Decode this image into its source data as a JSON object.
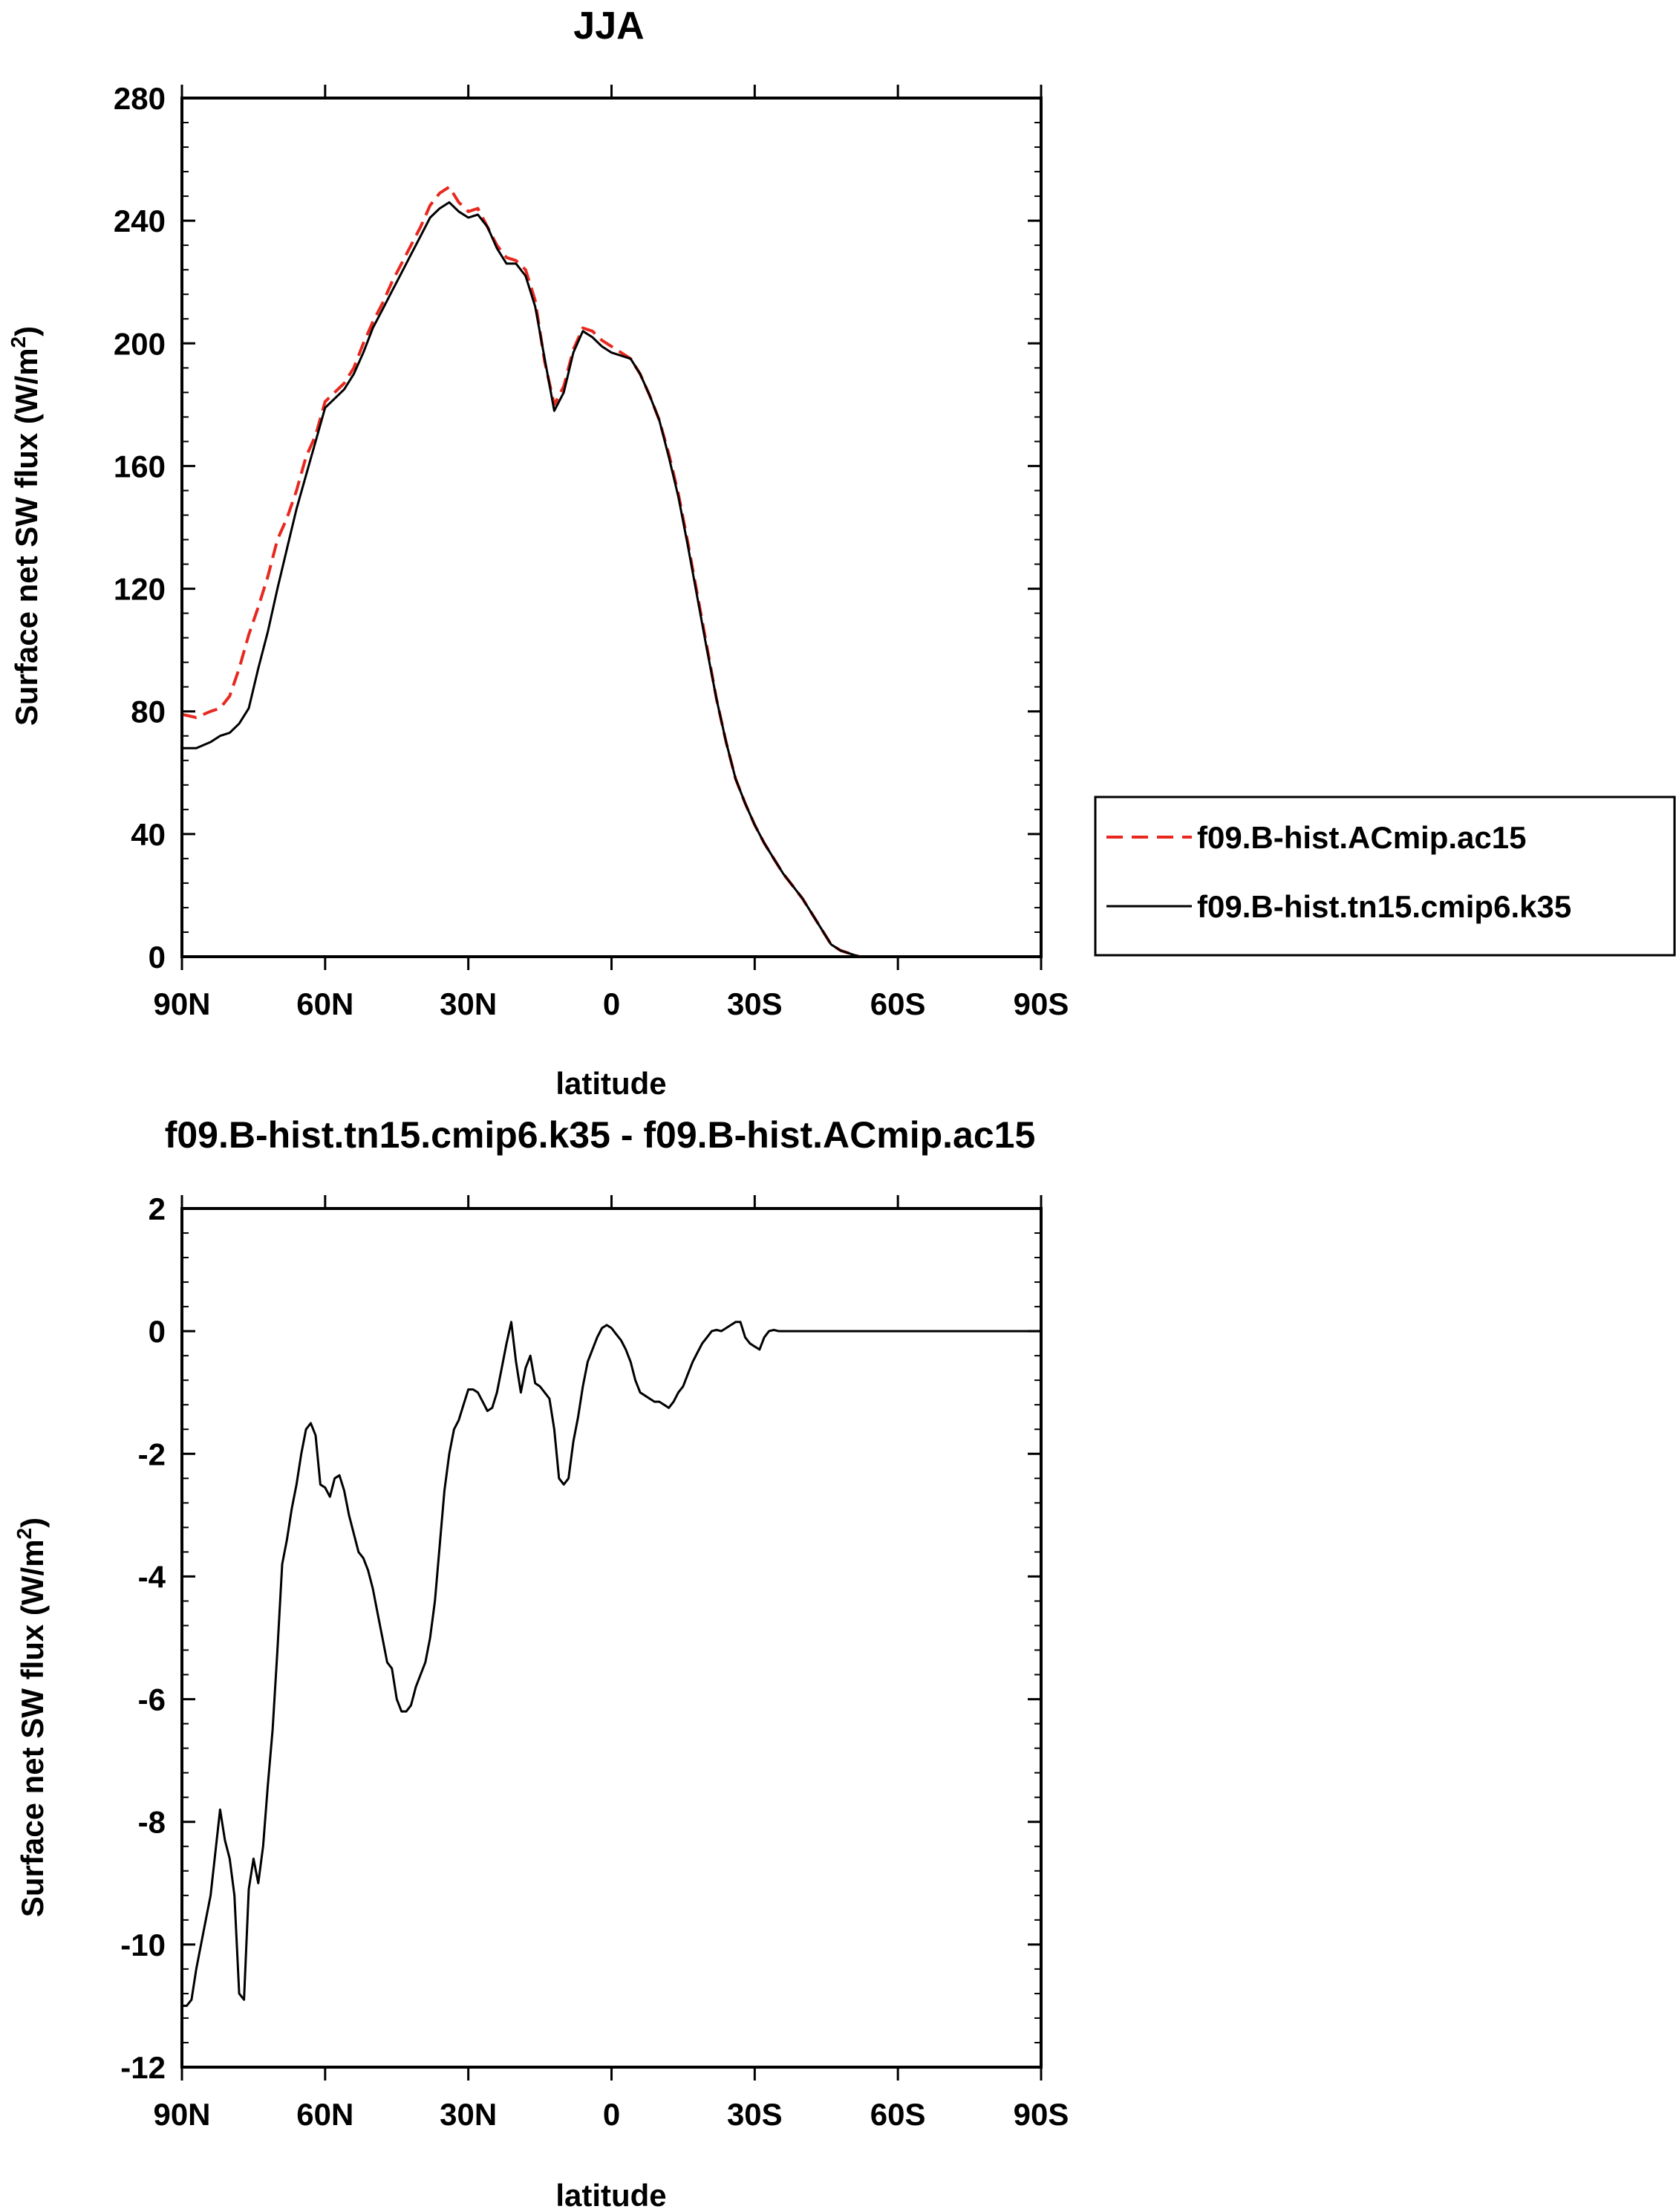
{
  "chart_data": [
    {
      "type": "line",
      "title": "JJA",
      "xlabel": "latitude",
      "ylabel": "Surface net SW flux (W/m",
      "ylabel_sup": "2",
      "ylabel_close": ")",
      "xlim": [
        90,
        -90
      ],
      "ylim": [
        0,
        280
      ],
      "xticks": [
        90,
        60,
        30,
        0,
        -30,
        -60,
        -90
      ],
      "xtick_labels": [
        "90N",
        "60N",
        "30N",
        "0",
        "30S",
        "60S",
        "90S"
      ],
      "yticks": [
        0,
        40,
        80,
        120,
        160,
        200,
        240,
        280
      ],
      "ytick_labels": [
        "0",
        "40",
        "80",
        "120",
        "160",
        "200",
        "240",
        "280"
      ],
      "grid": false,
      "legend_position": "right",
      "series": [
        {
          "name": "f09.B-hist.ACmip.ac15",
          "color": "#e8281e",
          "dash": "dashed",
          "x": [
            90,
            87,
            84,
            82,
            80,
            78,
            76,
            74,
            72,
            70,
            68,
            66,
            64,
            62,
            60,
            58,
            56,
            54,
            52,
            50,
            48,
            46,
            44,
            42,
            40,
            38,
            36,
            34,
            32,
            30,
            28,
            26,
            24,
            22,
            20,
            18,
            16,
            14,
            12,
            10,
            8,
            6,
            4,
            2,
            0,
            -2,
            -4,
            -6,
            -8,
            -10,
            -12,
            -14,
            -16,
            -18,
            -20,
            -22,
            -24,
            -26,
            -28,
            -30,
            -32,
            -34,
            -36,
            -38,
            -40,
            -42,
            -44,
            -46,
            -48,
            -50,
            -52,
            -54,
            -56,
            -58,
            -60,
            -62,
            -64,
            -66,
            -68,
            -70,
            -72,
            -75,
            -78,
            -81,
            -84,
            -87,
            -90
          ],
          "y": [
            79,
            78,
            80,
            81,
            85,
            94,
            105,
            114,
            124,
            136,
            143,
            152,
            163,
            170,
            181,
            184,
            187,
            192,
            200,
            207,
            213,
            220,
            226,
            232,
            238,
            245,
            249,
            251,
            246,
            243,
            244,
            238,
            232,
            228,
            227,
            224,
            214,
            194,
            180,
            186,
            198,
            205,
            204,
            201,
            199,
            197,
            195,
            190,
            183,
            175,
            164,
            151,
            135,
            118,
            101,
            84,
            70,
            58,
            50,
            43,
            37,
            32,
            27,
            23,
            19,
            14,
            9,
            4,
            2,
            1,
            0,
            0,
            0,
            0,
            0,
            0,
            0,
            0,
            0,
            0,
            0,
            0,
            0,
            0,
            0,
            0,
            0
          ]
        },
        {
          "name": "f09.B-hist.tn15.cmip6.k35",
          "color": "#000000",
          "dash": "solid",
          "x": [
            90,
            87,
            84,
            82,
            80,
            78,
            76,
            74,
            72,
            70,
            68,
            66,
            64,
            62,
            60,
            58,
            56,
            54,
            52,
            50,
            48,
            46,
            44,
            42,
            40,
            38,
            36,
            34,
            32,
            30,
            28,
            26,
            24,
            22,
            20,
            18,
            16,
            14,
            12,
            10,
            8,
            6,
            4,
            2,
            0,
            -2,
            -4,
            -6,
            -8,
            -10,
            -12,
            -14,
            -16,
            -18,
            -20,
            -22,
            -24,
            -26,
            -28,
            -30,
            -32,
            -34,
            -36,
            -38,
            -40,
            -42,
            -44,
            -46,
            -48,
            -50,
            -52,
            -54,
            -56,
            -58,
            -60,
            -62,
            -64,
            -66,
            -68,
            -70,
            -72,
            -75,
            -78,
            -81,
            -84,
            -87,
            -90
          ],
          "y": [
            68,
            68,
            70,
            72,
            73,
            76,
            81,
            94,
            106,
            120,
            133,
            146,
            157,
            168,
            179,
            182,
            185,
            190,
            197,
            205,
            211,
            217,
            223,
            229,
            235,
            241,
            244,
            246,
            243,
            241,
            242,
            238,
            231,
            226,
            226,
            222,
            212,
            195,
            178,
            184,
            197,
            204,
            202,
            199,
            197,
            196,
            195,
            190,
            183,
            175,
            163,
            150,
            134,
            117,
            100,
            84,
            70,
            58,
            50,
            43,
            37,
            32,
            27,
            23,
            19,
            14,
            9,
            4,
            2,
            1,
            0,
            0,
            0,
            0,
            0,
            0,
            0,
            0,
            0,
            0,
            0,
            0,
            0,
            0,
            0,
            0,
            0
          ]
        }
      ]
    },
    {
      "type": "line",
      "title": "f09.B-hist.tn15.cmip6.k35 - f09.B-hist.ACmip.ac15",
      "xlabel": "latitude",
      "ylabel": "Surface net SW flux (W/m",
      "ylabel_sup": "2",
      "ylabel_close": ")",
      "xlim": [
        90,
        -90
      ],
      "ylim": [
        -12,
        2
      ],
      "xticks": [
        90,
        60,
        30,
        0,
        -30,
        -60,
        -90
      ],
      "xtick_labels": [
        "90N",
        "60N",
        "30N",
        "0",
        "30S",
        "60S",
        "90S"
      ],
      "yticks": [
        -12,
        -10,
        -8,
        -6,
        -4,
        -2,
        0,
        2
      ],
      "ytick_labels": [
        "-12",
        "-10",
        "-8",
        "-6",
        "-4",
        "-2",
        "0",
        "2"
      ],
      "grid": false,
      "series": [
        {
          "color": "#000000",
          "dash": "solid",
          "x": [
            90,
            89,
            88,
            87,
            86,
            85,
            84,
            83,
            82,
            81,
            80,
            79,
            78,
            77,
            76,
            75,
            74,
            73,
            72,
            71,
            70,
            69,
            68,
            67,
            66,
            65,
            64,
            63,
            62,
            61,
            60,
            59,
            58,
            57,
            56,
            55,
            54,
            53,
            52,
            51,
            50,
            49,
            48,
            47,
            46,
            45,
            44,
            43,
            42,
            41,
            40,
            39,
            38,
            37,
            36,
            35,
            34,
            33,
            32,
            31,
            30,
            29,
            28,
            27,
            26,
            25,
            24,
            23,
            22,
            21,
            20,
            19,
            18,
            17,
            16,
            15,
            14,
            13,
            12,
            11,
            10,
            9,
            8,
            7,
            6,
            5,
            4,
            3,
            2,
            1,
            0,
            -1,
            -2,
            -3,
            -4,
            -5,
            -6,
            -7,
            -8,
            -9,
            -10,
            -11,
            -12,
            -13,
            -14,
            -15,
            -16,
            -17,
            -18,
            -19,
            -20,
            -21,
            -22,
            -23,
            -24,
            -25,
            -26,
            -27,
            -28,
            -29,
            -30,
            -31,
            -32,
            -33,
            -34,
            -35,
            -36,
            -37,
            -38,
            -39,
            -40,
            -41,
            -42,
            -43,
            -44,
            -45,
            -46,
            -47,
            -48,
            -49,
            -50,
            -51,
            -52,
            -53,
            -54,
            -55,
            -56,
            -57,
            -58,
            -59,
            -60,
            -61,
            -62,
            -63,
            -64,
            -65,
            -66,
            -67,
            -68,
            -70,
            -75,
            -80,
            -85,
            -90
          ],
          "y": [
            -11.0,
            -11.0,
            -10.9,
            -10.4,
            -10.0,
            -9.6,
            -9.2,
            -8.5,
            -7.8,
            -8.3,
            -8.6,
            -9.2,
            -10.8,
            -10.9,
            -9.1,
            -8.6,
            -9.0,
            -8.4,
            -7.4,
            -6.5,
            -5.2,
            -3.8,
            -3.4,
            -2.9,
            -2.5,
            -2.0,
            -1.6,
            -1.5,
            -1.7,
            -2.5,
            -2.55,
            -2.7,
            -2.4,
            -2.35,
            -2.6,
            -3.0,
            -3.3,
            -3.6,
            -3.7,
            -3.9,
            -4.2,
            -4.6,
            -5.0,
            -5.4,
            -5.5,
            -6.0,
            -6.2,
            -6.2,
            -6.1,
            -5.8,
            -5.6,
            -5.4,
            -5.0,
            -4.4,
            -3.5,
            -2.6,
            -2.0,
            -1.6,
            -1.45,
            -1.2,
            -0.95,
            -0.95,
            -1.0,
            -1.15,
            -1.3,
            -1.25,
            -1.0,
            -0.6,
            -0.2,
            0.15,
            -0.5,
            -1.0,
            -0.6,
            -0.4,
            -0.85,
            -0.9,
            -1.0,
            -1.1,
            -1.6,
            -2.4,
            -2.5,
            -2.4,
            -1.8,
            -1.4,
            -0.9,
            -0.5,
            -0.3,
            -0.1,
            0.05,
            0.1,
            0.05,
            -0.05,
            -0.15,
            -0.3,
            -0.5,
            -0.8,
            -1.0,
            -1.05,
            -1.1,
            -1.15,
            -1.15,
            -1.2,
            -1.25,
            -1.15,
            -1.0,
            -0.9,
            -0.7,
            -0.5,
            -0.35,
            -0.2,
            -0.1,
            0.0,
            0.02,
            0.0,
            0.05,
            0.1,
            0.15,
            0.15,
            -0.1,
            -0.2,
            -0.25,
            -0.3,
            -0.1,
            0.0,
            0.02,
            0.0,
            0.0,
            0.0,
            0.0,
            0.0,
            0.0,
            0.0,
            0.0,
            0.0,
            0.0,
            0.0,
            0.0,
            0.0,
            0.0,
            0.0,
            0.0,
            0.0,
            0.0,
            0.0,
            0.0,
            0.0,
            0.0,
            0.0,
            0.0,
            0.0,
            0.0,
            0.0,
            0.0,
            0.0,
            0.0,
            0.0,
            0.0,
            0.0,
            0.0,
            0.0,
            0.0,
            0.0,
            0.0,
            0.0
          ]
        }
      ]
    }
  ]
}
